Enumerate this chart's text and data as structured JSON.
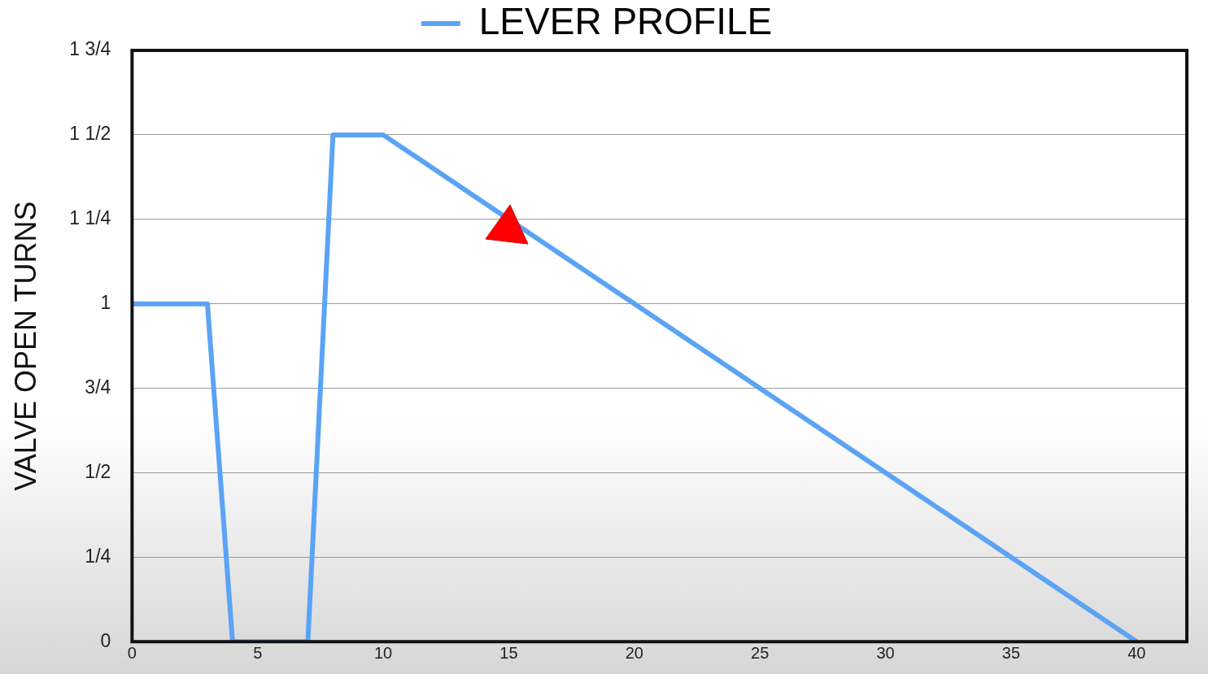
{
  "chart_data": {
    "type": "line",
    "ylabel": "VALVE OPEN TURNS",
    "x": [
      0,
      3,
      4,
      7,
      8,
      10,
      40
    ],
    "series": [
      {
        "name": "LEVER PROFILE",
        "color": "#5ba3f5",
        "values": [
          1,
          1,
          0,
          0,
          1.5,
          1.5,
          0
        ]
      }
    ],
    "xlim": [
      0,
      42
    ],
    "xticks": [
      0,
      5,
      10,
      15,
      20,
      25,
      30,
      35,
      40
    ],
    "ylim": [
      0,
      1.75
    ],
    "yticks": [
      {
        "value": 0,
        "label": "0"
      },
      {
        "value": 0.25,
        "label": "1/4"
      },
      {
        "value": 0.5,
        "label": "1/2"
      },
      {
        "value": 0.75,
        "label": "3/4"
      },
      {
        "value": 1,
        "label": "1"
      },
      {
        "value": 1.25,
        "label": "1 1/4"
      },
      {
        "value": 1.5,
        "label": "1 1/2"
      },
      {
        "value": 1.75,
        "label": "1 3/4"
      }
    ],
    "grid": "y",
    "legend": "top",
    "marker": "none",
    "line_style": "solid"
  }
}
